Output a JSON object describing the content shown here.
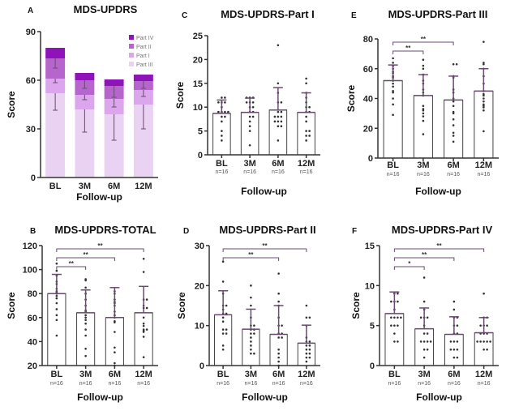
{
  "chart_data": [
    {
      "id": "A",
      "type": "bar",
      "stacked": true,
      "panel_label": "A",
      "title": "MDS-UPDRS",
      "xlabel": "Follow-up",
      "ylabel": "Score",
      "ylim": [
        0,
        90
      ],
      "yticks": [
        0,
        30,
        60,
        90
      ],
      "categories": [
        "BL",
        "3M",
        "6M",
        "12M"
      ],
      "legend_position": "top-right",
      "series": [
        {
          "name": "Part III",
          "color": "#ead2f2",
          "values": [
            52,
            42,
            39,
            45
          ],
          "sd": [
            10.5,
            14,
            16,
            15
          ]
        },
        {
          "name": "Part I",
          "color": "#dca6ec",
          "values": [
            9,
            9,
            9.5,
            9
          ],
          "sd": [
            2.5,
            3,
            5,
            4
          ]
        },
        {
          "name": "Part II",
          "color": "#b565cc",
          "values": [
            12.5,
            9,
            8,
            5.5
          ],
          "sd": [
            6,
            5,
            7,
            4.5
          ]
        },
        {
          "name": "Part IV",
          "color": "#8e13b8",
          "values": [
            6.5,
            4.5,
            4,
            4
          ],
          "sd": [
            2.5,
            2.5,
            2,
            2
          ]
        }
      ],
      "legend_order": [
        "Part IV",
        "Part II",
        "Part I",
        "Part III"
      ]
    },
    {
      "id": "C",
      "type": "bar",
      "panel_label": "C",
      "title": "MDS-UPDRS-Part I",
      "xlabel": "Follow-up",
      "ylabel": "Score",
      "ylim": [
        0,
        25
      ],
      "yticks": [
        0,
        5,
        10,
        15,
        20,
        25
      ],
      "categories": [
        "BL",
        "3M",
        "6M",
        "12M"
      ],
      "n_labels": [
        "n=16",
        "n=16",
        "n=16",
        "n=16"
      ],
      "values": [
        8.7,
        8.9,
        9.4,
        8.9
      ],
      "sd": [
        2.8,
        3.0,
        4.7,
        4.1
      ],
      "points": [
        [
          3,
          4,
          5,
          7,
          8,
          9,
          9,
          9,
          10,
          11,
          11,
          11,
          12,
          12,
          9,
          8
        ],
        [
          2,
          5,
          6,
          7,
          8,
          8,
          9,
          9,
          10,
          11,
          11,
          12,
          12,
          12,
          10,
          11
        ],
        [
          3,
          6,
          6,
          7,
          7,
          8,
          8,
          8,
          9,
          9,
          11,
          11,
          13,
          15,
          23,
          7
        ],
        [
          3,
          4,
          4,
          5,
          5,
          7,
          8,
          9,
          10,
          10,
          11,
          12,
          13,
          15,
          16,
          9
        ]
      ],
      "significance": []
    },
    {
      "id": "E",
      "type": "bar",
      "panel_label": "E",
      "title": "MDS-UPDRS-Part III",
      "xlabel": "Follow-up",
      "ylabel": "Score",
      "ylim": [
        0,
        80
      ],
      "yticks": [
        0,
        20,
        40,
        60,
        80
      ],
      "categories": [
        "BL",
        "3M",
        "6M",
        "12M"
      ],
      "n_labels": [
        "n=16",
        "n=16",
        "n=16",
        "n=16"
      ],
      "values": [
        52,
        42,
        39,
        45
      ],
      "sd": [
        10.5,
        14,
        16,
        15
      ],
      "points": [
        [
          29,
          36,
          40,
          44,
          45,
          48,
          50,
          52,
          55,
          57,
          58,
          60,
          62,
          64,
          67,
          54
        ],
        [
          16,
          25,
          28,
          30,
          32,
          33,
          35,
          42,
          44,
          46,
          50,
          52,
          56,
          60,
          62,
          66
        ],
        [
          11,
          15,
          17,
          22,
          26,
          30,
          31,
          35,
          38,
          40,
          44,
          46,
          54,
          55,
          63,
          63
        ],
        [
          18,
          32,
          34,
          35,
          36,
          38,
          40,
          42,
          43,
          45,
          50,
          55,
          60,
          63,
          64,
          78
        ]
      ],
      "significance": [
        {
          "from": "BL",
          "to": "3M",
          "label": "**"
        },
        {
          "from": "BL",
          "to": "6M",
          "label": "**"
        }
      ]
    },
    {
      "id": "B",
      "type": "bar",
      "panel_label": "B",
      "title": "MDS-UPDRS-TOTAL",
      "xlabel": "Follow-up",
      "ylabel": "Score",
      "ylim": [
        20,
        120
      ],
      "yticks": [
        20,
        40,
        60,
        80,
        100,
        120
      ],
      "categories": [
        "BL",
        "3M",
        "6M",
        "12M"
      ],
      "n_labels": [
        "n=16",
        "n=16",
        "n=16",
        "n=16"
      ],
      "values": [
        80,
        64,
        60,
        64
      ],
      "sd": [
        16,
        19,
        25,
        22
      ],
      "points": [
        [
          45,
          58,
          62,
          67,
          72,
          76,
          78,
          80,
          82,
          84,
          88,
          90,
          95,
          99,
          105,
          81
        ],
        [
          28,
          34,
          45,
          50,
          55,
          58,
          60,
          62,
          66,
          70,
          75,
          80,
          85,
          91,
          92,
          65
        ],
        [
          20,
          22,
          31,
          35,
          48,
          56,
          57,
          62,
          65,
          70,
          72,
          73,
          75,
          80,
          82,
          60
        ],
        [
          27,
          44,
          48,
          49,
          50,
          50,
          53,
          55,
          60,
          68,
          68,
          70,
          75,
          75,
          98,
          109
        ]
      ],
      "significance": [
        {
          "from": "BL",
          "to": "3M",
          "label": "**"
        },
        {
          "from": "BL",
          "to": "6M",
          "label": "**"
        },
        {
          "from": "BL",
          "to": "12M",
          "label": "**"
        }
      ]
    },
    {
      "id": "D",
      "type": "bar",
      "panel_label": "D",
      "title": "MDS-UPDRS-Part II",
      "xlabel": "Follow-up",
      "ylabel": "Score",
      "ylim": [
        0,
        30
      ],
      "yticks": [
        0,
        10,
        20,
        30
      ],
      "categories": [
        "BL",
        "3M",
        "6M",
        "12M"
      ],
      "n_labels": [
        "n=16",
        "n=16",
        "n=16",
        "n=16"
      ],
      "values": [
        12.7,
        9.1,
        7.8,
        5.6
      ],
      "sd": [
        6,
        5,
        7.2,
        4.5
      ],
      "points": [
        [
          4,
          5,
          8,
          8,
          9,
          9,
          11,
          12,
          13,
          14,
          15,
          15,
          18,
          21,
          26,
          13
        ],
        [
          3,
          3,
          4,
          5,
          6,
          7,
          8,
          8,
          9,
          10,
          10,
          12,
          15,
          17,
          20,
          9
        ],
        [
          0,
          1,
          2,
          3,
          4,
          7,
          7,
          8,
          10,
          10,
          12,
          15,
          16,
          18,
          23,
          8
        ],
        [
          1,
          2,
          2,
          3,
          3,
          4,
          4,
          5,
          5,
          6,
          6,
          7,
          10,
          12,
          12,
          15
        ]
      ],
      "significance": [
        {
          "from": "BL",
          "to": "6M",
          "label": "**"
        },
        {
          "from": "BL",
          "to": "12M",
          "label": "**"
        }
      ]
    },
    {
      "id": "F",
      "type": "bar",
      "panel_label": "F",
      "title": "MDS-UPDRS-Part IV",
      "xlabel": "Follow-up",
      "ylabel": "Score",
      "ylim": [
        0,
        15
      ],
      "yticks": [
        0,
        5,
        10,
        15
      ],
      "categories": [
        "BL",
        "3M",
        "6M",
        "12M"
      ],
      "n_labels": [
        "n=16",
        "n=16",
        "n=16",
        "n=16"
      ],
      "values": [
        6.5,
        4.6,
        3.9,
        4.1
      ],
      "sd": [
        2.7,
        2.6,
        2.2,
        1.9
      ],
      "points": [
        [
          3,
          3,
          4,
          5,
          5,
          5,
          6,
          6,
          6,
          6,
          7,
          8,
          8,
          8,
          9,
          9
        ],
        [
          1,
          2,
          2,
          3,
          3,
          3,
          3,
          4,
          4,
          5,
          6,
          6,
          6,
          7,
          8,
          11
        ],
        [
          1,
          1,
          2,
          2,
          2,
          3,
          3,
          3,
          4,
          4,
          5,
          5,
          6,
          6,
          7,
          8
        ],
        [
          2,
          2,
          3,
          3,
          3,
          3,
          3,
          4,
          4,
          4,
          5,
          5,
          5,
          6,
          6,
          9
        ]
      ],
      "significance": [
        {
          "from": "BL",
          "to": "3M",
          "label": "*"
        },
        {
          "from": "BL",
          "to": "6M",
          "label": "**"
        },
        {
          "from": "BL",
          "to": "12M",
          "label": "**"
        }
      ]
    }
  ]
}
